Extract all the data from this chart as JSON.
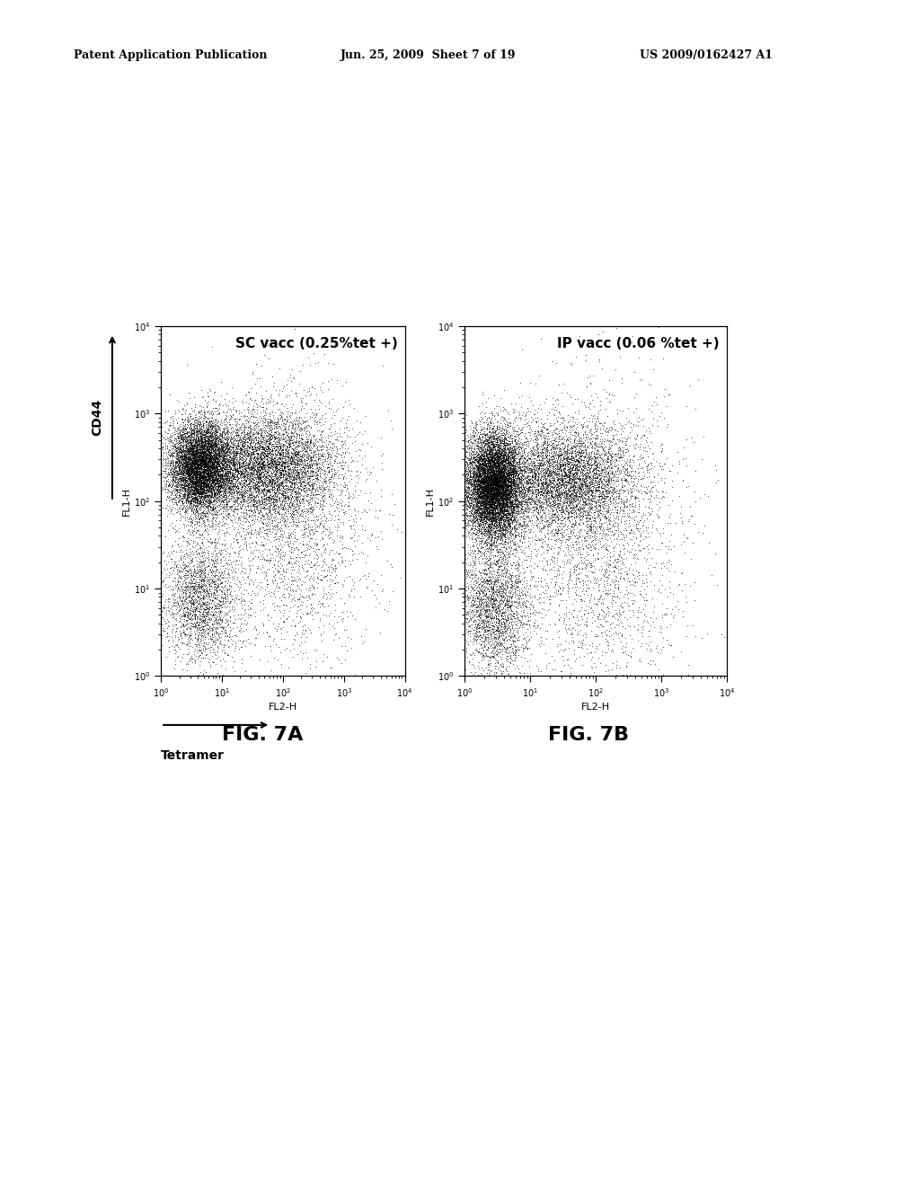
{
  "header_left": "Patent Application Publication",
  "header_mid": "Jun. 25, 2009  Sheet 7 of 19",
  "header_right": "US 2009/0162427 A1",
  "fig_a_title": "SC vacc (0.25%tet +)",
  "fig_b_title": "IP vacc (0.06 %tet +)",
  "fig_a_caption": "FIG. 7A",
  "fig_b_caption": "FIG. 7B",
  "xlabel_a": "FL2-H",
  "xlabel_b": "FL2-H",
  "ylabel_a": "FL1-H",
  "ylabel_b": "FL1-H",
  "cd44_label": "CD44",
  "tetramer_label": "Tetramer",
  "background_color": "#ffffff",
  "plot_bg": "#ffffff",
  "dot_color": "#000000",
  "seed_a": 42,
  "seed_b": 99,
  "n_points_a": 20000,
  "n_points_b": 22000,
  "header_fontsize": 9,
  "title_fontsize": 11,
  "caption_fontsize": 16,
  "tick_fontsize": 7,
  "label_fontsize": 8
}
